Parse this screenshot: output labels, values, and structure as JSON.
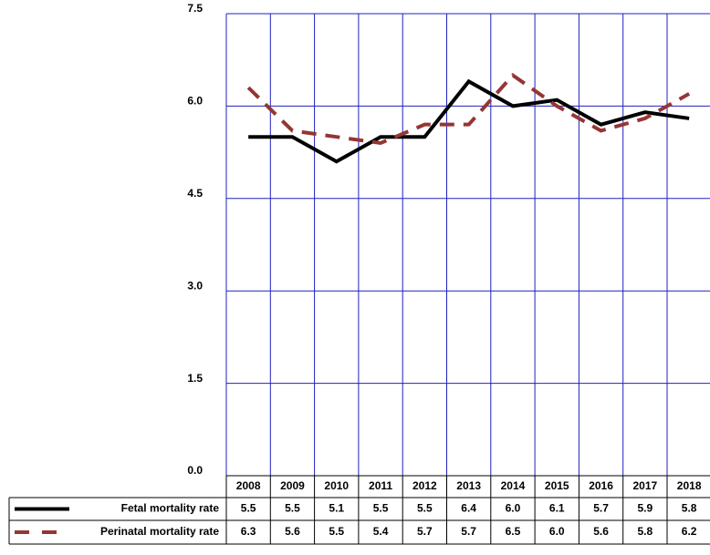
{
  "chart_data": {
    "type": "line",
    "categories": [
      "2008",
      "2009",
      "2010",
      "2011",
      "2012",
      "2013",
      "2014",
      "2015",
      "2016",
      "2017",
      "2018"
    ],
    "series": [
      {
        "name": "Fetal mortality rate",
        "color": "#000000",
        "dash": false,
        "values": [
          5.5,
          5.5,
          5.1,
          5.5,
          5.5,
          6.4,
          6.0,
          6.1,
          5.7,
          5.9,
          5.8
        ],
        "value_labels": [
          "5.5",
          "5.5",
          "5.1",
          "5.5",
          "5.5",
          "6.4",
          "6.0",
          "6.1",
          "5.7",
          "5.9",
          "5.8"
        ]
      },
      {
        "name": "Perinatal  mortality rate",
        "color": "#943634",
        "dash": true,
        "values": [
          6.3,
          5.6,
          5.5,
          5.4,
          5.7,
          5.7,
          6.5,
          6.0,
          5.6,
          5.8,
          6.2
        ],
        "value_labels": [
          "6.3",
          "5.6",
          "5.5",
          "5.4",
          "5.7",
          "5.7",
          "6.5",
          "6.0",
          "5.6",
          "5.8",
          "6.2"
        ]
      }
    ],
    "ylim": [
      0,
      7.5
    ],
    "yticks": [
      {
        "value": 0,
        "label": "0.0"
      },
      1.5,
      {
        "value": 3,
        "label": "3.0"
      },
      4.5,
      {
        "value": 6,
        "label": "6.0"
      },
      7.5
    ],
    "grid": true,
    "grid_color": "#2020c0"
  }
}
